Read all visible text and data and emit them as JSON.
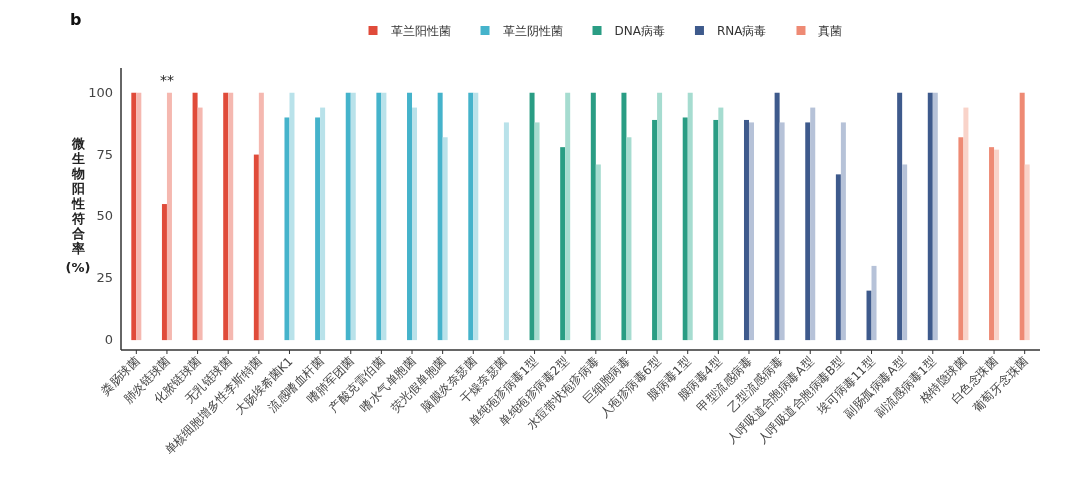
{
  "chart_data": {
    "type": "bar",
    "title": "b",
    "ylabel": "微生物阳性符合率 (%)",
    "categories": [
      "粪肠球菌",
      "肺炎链球菌",
      "化脓链球菌",
      "无乳链球菌",
      "单核细胞增多性李斯特菌",
      "大肠埃希菌K1",
      "流感嗜血杆菌",
      "嗜肺军团菌",
      "产酸克雷伯菌",
      "嗜水气单胞菌",
      "荧光假单胞菌",
      "脑膜炎奈瑟菌",
      "干燥奈瑟菌",
      "单纯疱疹病毒1型",
      "单纯疱疹病毒2型",
      "水痘带状疱疹病毒",
      "巨细胞病毒",
      "人疱疹病毒6型",
      "腺病毒1型",
      "腺病毒4型",
      "甲型流感病毒",
      "乙型流感病毒",
      "人呼吸道合胞病毒A型",
      "人呼吸道合胞病毒B型",
      "埃可病毒11型",
      "副肠孤病毒A型",
      "副流感病毒1型",
      "格特隐球菌",
      "白色念珠菌",
      "葡萄牙念珠菌"
    ],
    "series": [
      {
        "name": "革兰阳性菌",
        "color": "#e04b3a",
        "values": [
          100,
          55,
          100,
          100,
          75,
          null,
          null,
          null,
          null,
          null,
          null,
          null,
          null,
          null,
          null,
          null,
          null,
          null,
          null,
          null,
          null,
          null,
          null,
          null,
          null,
          null,
          null,
          null,
          null,
          null
        ]
      },
      {
        "color": "#f5b8b0",
        "values": [
          100,
          100,
          94,
          100,
          100,
          null,
          null,
          null,
          null,
          null,
          null,
          null,
          null,
          null,
          null,
          null,
          null,
          null,
          null,
          null,
          null,
          null,
          null,
          null,
          null,
          null,
          null,
          null,
          null,
          null
        ]
      },
      {
        "name": "革兰阴性菌",
        "color": "#45b3cb",
        "values": [
          null,
          null,
          null,
          null,
          null,
          90,
          90,
          100,
          100,
          100,
          100,
          100,
          null,
          null,
          null,
          null,
          null,
          null,
          null,
          null,
          null,
          null,
          null,
          null,
          null,
          null,
          null,
          null,
          null,
          null
        ]
      },
      {
        "color": "#b9e2ea",
        "values": [
          null,
          null,
          null,
          null,
          null,
          100,
          94,
          100,
          100,
          94,
          82,
          100,
          88,
          null,
          null,
          null,
          null,
          null,
          null,
          null,
          null,
          null,
          null,
          null,
          null,
          null,
          null,
          null,
          null,
          null
        ]
      },
      {
        "name": "DNA病毒",
        "color": "#2a9d84",
        "values": [
          null,
          null,
          null,
          null,
          null,
          null,
          null,
          null,
          null,
          null,
          null,
          null,
          null,
          100,
          78,
          100,
          100,
          89,
          90,
          89,
          null,
          null,
          null,
          null,
          null,
          null,
          null,
          null,
          null,
          null
        ]
      },
      {
        "color": "#a6dcd0",
        "values": [
          null,
          null,
          null,
          null,
          null,
          null,
          null,
          null,
          null,
          null,
          null,
          null,
          null,
          88,
          100,
          71,
          82,
          100,
          100,
          94,
          null,
          null,
          null,
          null,
          null,
          null,
          null,
          null,
          null,
          null
        ]
      },
      {
        "name": "RNA病毒",
        "color": "#3e5a8c",
        "values": [
          null,
          null,
          null,
          null,
          null,
          null,
          null,
          null,
          null,
          null,
          null,
          null,
          null,
          null,
          null,
          null,
          null,
          null,
          null,
          null,
          89,
          100,
          88,
          67,
          20,
          100,
          100,
          null,
          null,
          null
        ]
      },
      {
        "color": "#b6c2d8",
        "values": [
          null,
          null,
          null,
          null,
          null,
          null,
          null,
          null,
          null,
          null,
          null,
          null,
          null,
          null,
          null,
          null,
          null,
          null,
          null,
          null,
          88,
          88,
          94,
          88,
          30,
          71,
          100,
          null,
          null,
          null
        ]
      },
      {
        "name": "真菌",
        "color": "#ee8a74",
        "values": [
          null,
          null,
          null,
          null,
          null,
          null,
          null,
          null,
          null,
          null,
          null,
          null,
          null,
          null,
          null,
          null,
          null,
          null,
          null,
          null,
          null,
          null,
          null,
          null,
          null,
          null,
          null,
          82,
          78,
          100
        ]
      },
      {
        "color": "#f9d3c9",
        "values": [
          null,
          null,
          null,
          null,
          null,
          null,
          null,
          null,
          null,
          null,
          null,
          null,
          null,
          null,
          null,
          null,
          null,
          null,
          null,
          null,
          null,
          null,
          null,
          null,
          null,
          null,
          null,
          94,
          77,
          71
        ]
      }
    ],
    "ylim": [
      -4,
      110
    ],
    "yticks": [
      0,
      25,
      50,
      75,
      100
    ],
    "grid": false,
    "legend": "top",
    "annotations": [
      {
        "text": "**",
        "x": "肺炎链球菌",
        "y": 100
      }
    ]
  }
}
